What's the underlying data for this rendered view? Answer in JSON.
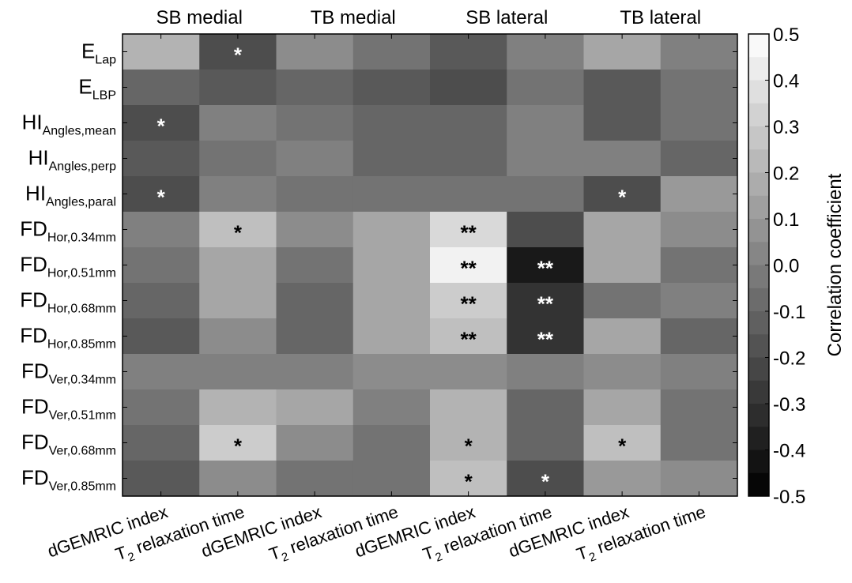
{
  "chart_data": {
    "type": "heatmap",
    "group_labels": [
      "SB medial",
      "TB medial",
      "SB lateral",
      "TB lateral"
    ],
    "columns": [
      {
        "main": "dGEMRIC index",
        "sub": ""
      },
      {
        "main": "T",
        "sub": "2",
        "rest": " relaxation time"
      },
      {
        "main": "dGEMRIC index",
        "sub": ""
      },
      {
        "main": "T",
        "sub": "2",
        "rest": " relaxation time"
      },
      {
        "main": "dGEMRIC index",
        "sub": ""
      },
      {
        "main": "T",
        "sub": "2",
        "rest": " relaxation time"
      },
      {
        "main": "dGEMRIC index",
        "sub": ""
      },
      {
        "main": "T",
        "sub": "2",
        "rest": " relaxation time"
      }
    ],
    "rows": [
      {
        "main": "E",
        "sub": "Lap"
      },
      {
        "main": "E",
        "sub": "LBP"
      },
      {
        "main": "HI",
        "sub": "Angles,mean"
      },
      {
        "main": "HI",
        "sub": "Angles,perp"
      },
      {
        "main": "HI",
        "sub": "Angles,paral"
      },
      {
        "main": "FD",
        "sub": "Hor,0.34mm"
      },
      {
        "main": "FD",
        "sub": "Hor,0.51mm"
      },
      {
        "main": "FD",
        "sub": "Hor,0.68mm"
      },
      {
        "main": "FD",
        "sub": "Hor,0.85mm"
      },
      {
        "main": "FD",
        "sub": "Ver,0.34mm"
      },
      {
        "main": "FD",
        "sub": "Ver,0.51mm"
      },
      {
        "main": "FD",
        "sub": "Ver,0.68mm"
      },
      {
        "main": "FD",
        "sub": "Ver,0.85mm"
      }
    ],
    "values": [
      [
        0.2,
        -0.2,
        0.05,
        -0.05,
        -0.15,
        0.0,
        0.15,
        0.0
      ],
      [
        -0.1,
        -0.15,
        -0.1,
        -0.15,
        -0.2,
        -0.05,
        -0.15,
        -0.05
      ],
      [
        -0.2,
        0.0,
        -0.05,
        -0.1,
        -0.1,
        0.0,
        -0.15,
        -0.05
      ],
      [
        -0.15,
        -0.05,
        0.0,
        -0.1,
        -0.1,
        0.0,
        0.0,
        -0.1
      ],
      [
        -0.2,
        0.0,
        -0.05,
        -0.05,
        -0.05,
        -0.05,
        -0.2,
        0.1
      ],
      [
        0.0,
        0.25,
        0.05,
        0.15,
        0.35,
        -0.2,
        0.15,
        0.05
      ],
      [
        -0.05,
        0.15,
        -0.05,
        0.15,
        0.45,
        -0.4,
        0.15,
        -0.05
      ],
      [
        -0.1,
        0.15,
        -0.1,
        0.15,
        0.3,
        -0.3,
        -0.05,
        0.0
      ],
      [
        -0.15,
        0.05,
        -0.1,
        0.15,
        0.25,
        -0.3,
        0.15,
        -0.1
      ],
      [
        0.0,
        0.0,
        0.0,
        0.05,
        0.05,
        0.0,
        0.05,
        0.0
      ],
      [
        -0.05,
        0.2,
        0.15,
        0.0,
        0.2,
        -0.1,
        0.15,
        -0.05
      ],
      [
        -0.1,
        0.3,
        0.05,
        -0.05,
        0.2,
        -0.1,
        0.25,
        -0.05
      ],
      [
        -0.15,
        0.05,
        -0.05,
        -0.05,
        0.25,
        -0.2,
        0.1,
        0.05
      ]
    ],
    "significance": [
      [
        "",
        "*",
        "",
        "",
        "",
        "",
        "",
        ""
      ],
      [
        "",
        "",
        "",
        "",
        "",
        "",
        "",
        ""
      ],
      [
        "*",
        "",
        "",
        "",
        "",
        "",
        "",
        ""
      ],
      [
        "",
        "",
        "",
        "",
        "",
        "",
        "",
        ""
      ],
      [
        "*",
        "",
        "",
        "",
        "",
        "",
        "*",
        ""
      ],
      [
        "",
        "*",
        "",
        "",
        "**",
        "",
        "",
        ""
      ],
      [
        "",
        "",
        "",
        "",
        "**",
        "**",
        "",
        ""
      ],
      [
        "",
        "",
        "",
        "",
        "**",
        "**",
        "",
        ""
      ],
      [
        "",
        "",
        "",
        "",
        "**",
        "**",
        "",
        ""
      ],
      [
        "",
        "",
        "",
        "",
        "",
        "",
        "",
        ""
      ],
      [
        "",
        "",
        "",
        "",
        "",
        "",
        "",
        ""
      ],
      [
        "",
        "*",
        "",
        "",
        "*",
        "",
        "*",
        ""
      ],
      [
        "",
        "",
        "",
        "",
        "*",
        "*",
        "",
        ""
      ]
    ],
    "colorbar": {
      "label": "Correlation coefficient",
      "range": [
        -0.5,
        0.5
      ],
      "step": 0.05,
      "ticks": [
        "0.5",
        "0.4",
        "0.3",
        "0.2",
        "0.1",
        "0.0",
        "-0.1",
        "-0.2",
        "-0.3",
        "-0.4",
        "-0.5"
      ]
    },
    "colormap": "grayscale (black = -0.5, white = 0.5)"
  }
}
